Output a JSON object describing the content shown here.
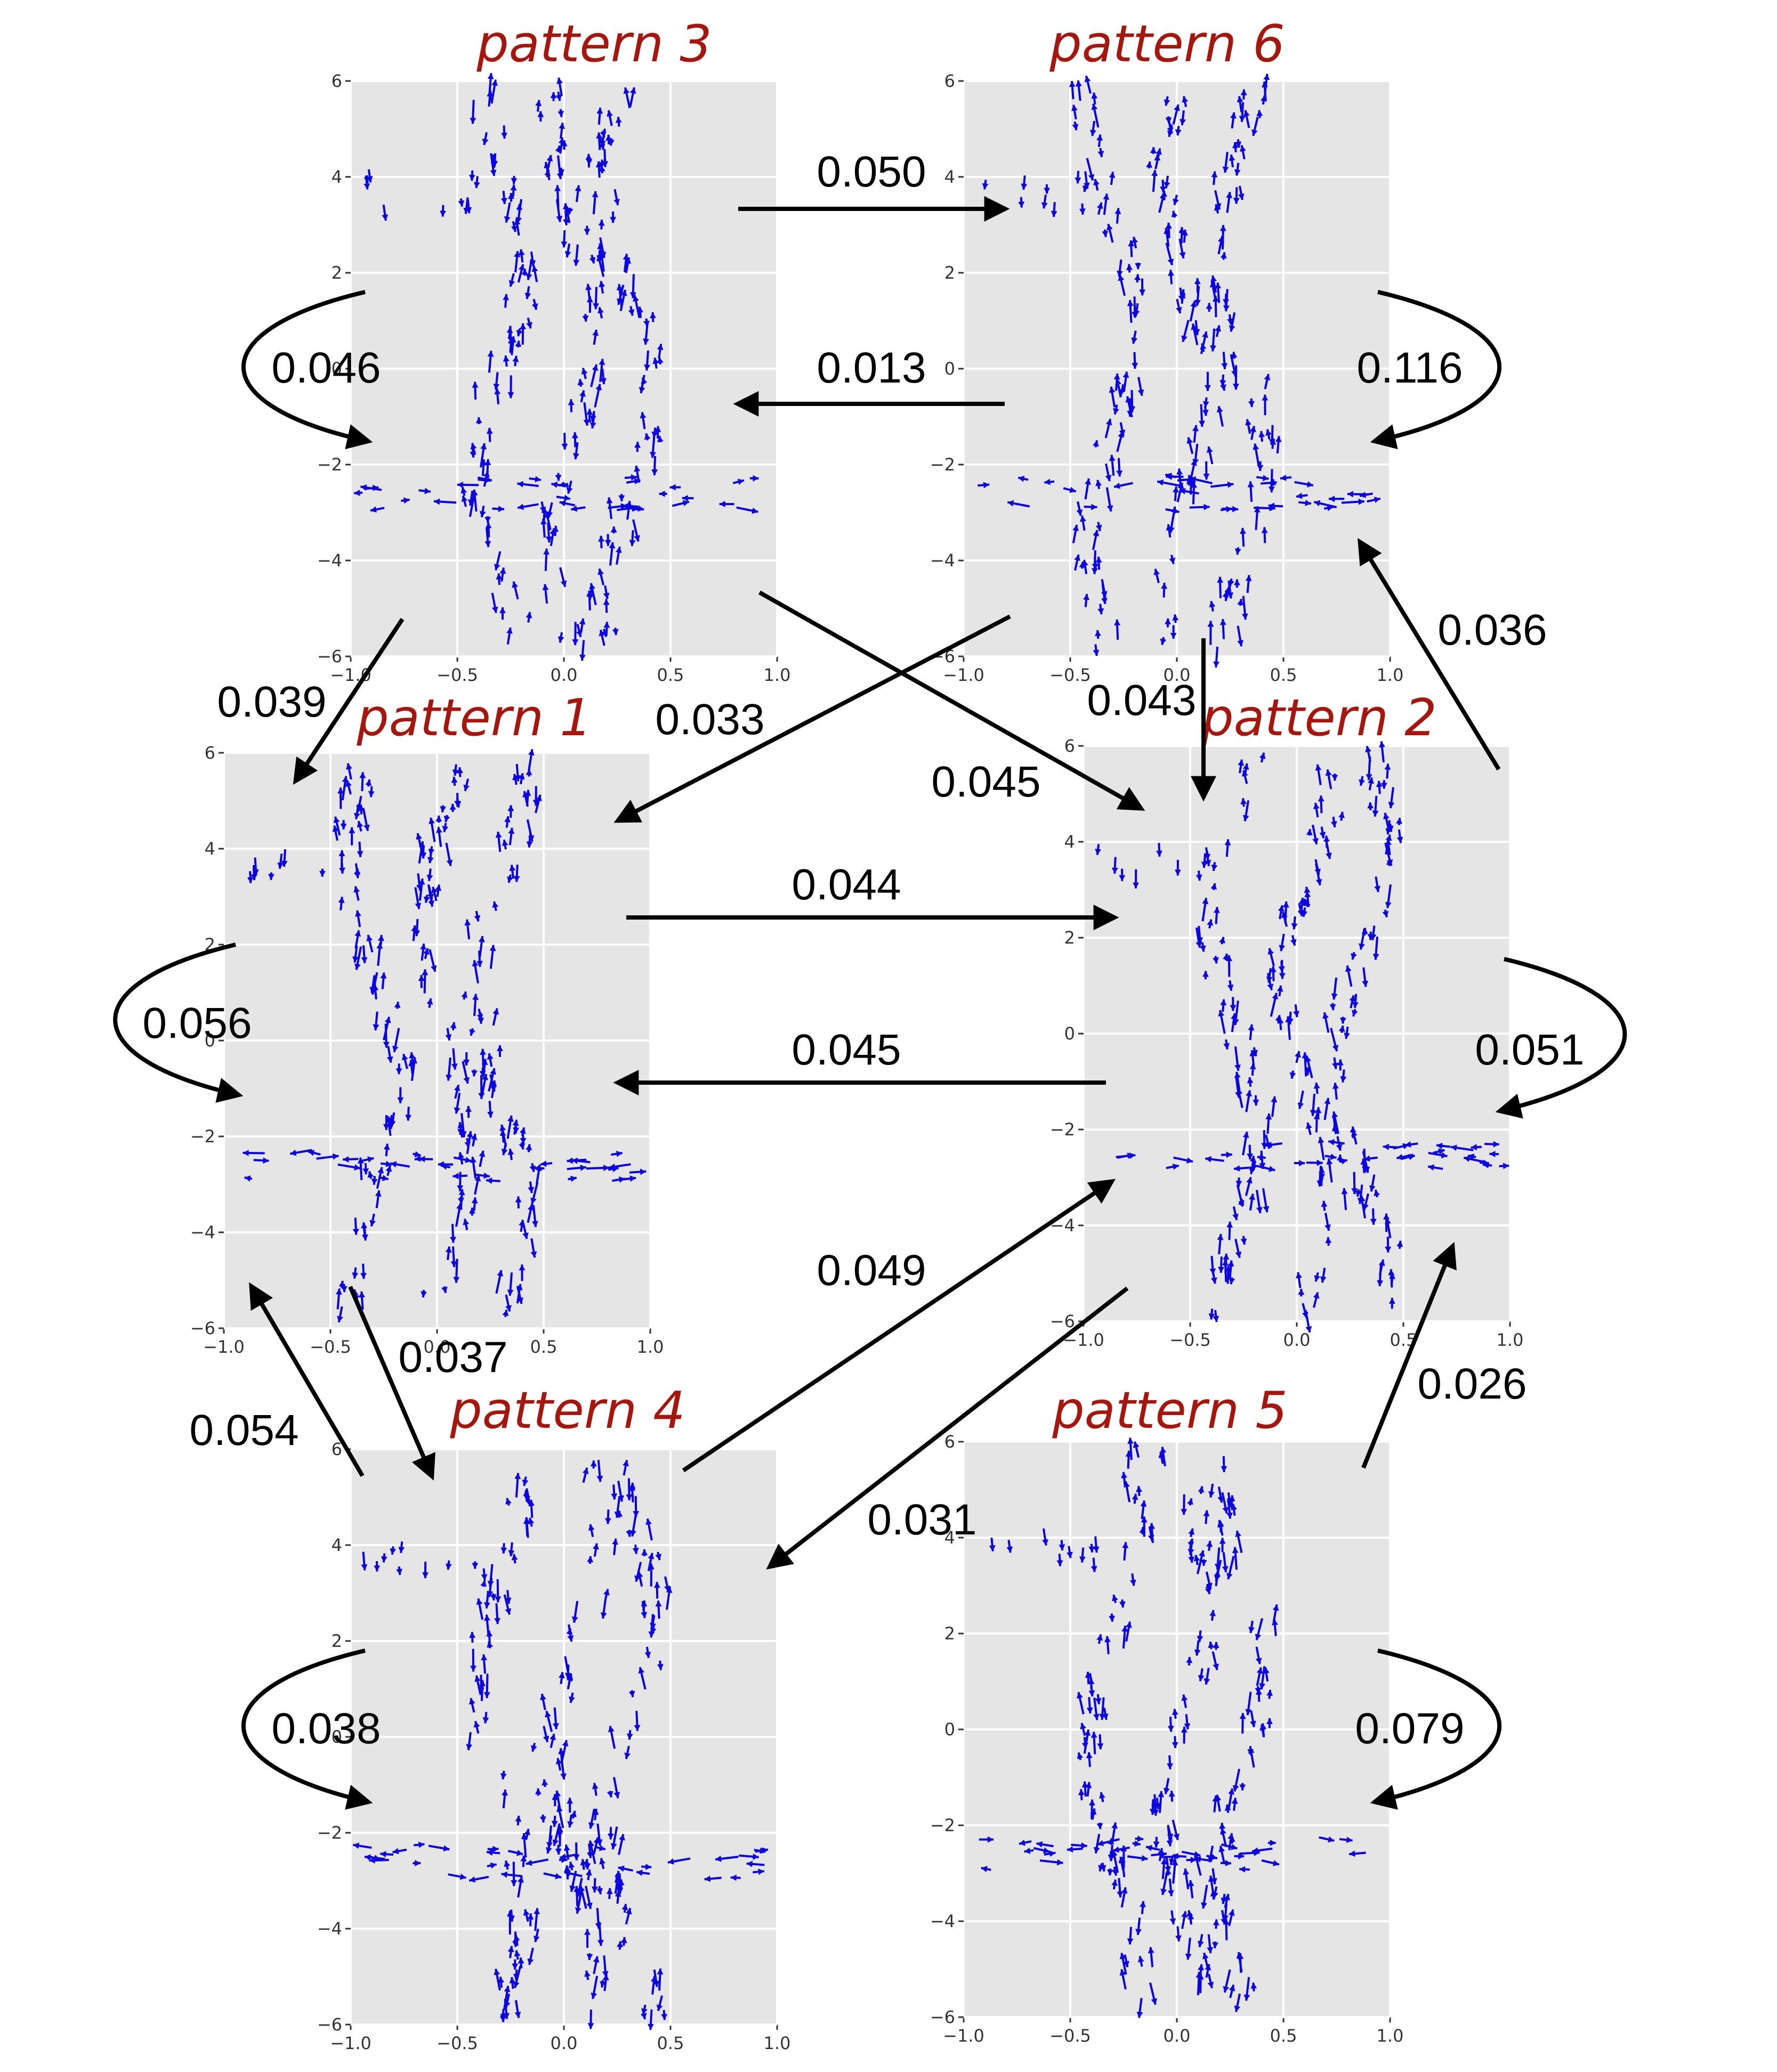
{
  "colors": {
    "panel_bg": "#e5e5e5",
    "title": "#a6160d",
    "vector": "#0a00e6",
    "arrow": "#000000"
  },
  "patterns": [
    {
      "id": "p3",
      "title": "pattern 3"
    },
    {
      "id": "p6",
      "title": "pattern 6"
    },
    {
      "id": "p1",
      "title": "pattern 1"
    },
    {
      "id": "p2",
      "title": "pattern 2"
    },
    {
      "id": "p4",
      "title": "pattern 4"
    },
    {
      "id": "p5",
      "title": "pattern 5"
    }
  ],
  "axes": {
    "x_ticks": [
      "−1.0",
      "−0.5",
      "0.0",
      "0.5",
      "1.0"
    ],
    "y_ticks": [
      "6",
      "4",
      "2",
      "0",
      "−2",
      "−4",
      "−6"
    ],
    "xlim": [
      -1.0,
      1.0
    ],
    "ylim": [
      -6,
      6
    ]
  },
  "transitions": [
    {
      "id": "p3_to_p6",
      "from": "pattern 3",
      "to": "pattern 6",
      "label": "0.050"
    },
    {
      "id": "p6_to_p3",
      "from": "pattern 6",
      "to": "pattern 3",
      "label": "0.013"
    },
    {
      "id": "p3_self",
      "from": "pattern 3",
      "to": "pattern 3",
      "label": "0.046"
    },
    {
      "id": "p6_self",
      "from": "pattern 6",
      "to": "pattern 6",
      "label": "0.116"
    },
    {
      "id": "p3_to_p1",
      "from": "pattern 3",
      "to": "pattern 1",
      "label": "0.039"
    },
    {
      "id": "p6_to_p1",
      "from": "pattern 6",
      "to": "pattern 1",
      "label": "0.033"
    },
    {
      "id": "p6_to_p2",
      "from": "pattern 6",
      "to": "pattern 2",
      "label": "0.043"
    },
    {
      "id": "p3_to_p2",
      "from": "pattern 3",
      "to": "pattern 2",
      "label": "0.045"
    },
    {
      "id": "p2_to_p6",
      "from": "pattern 2",
      "to": "pattern 6",
      "label": "0.036"
    },
    {
      "id": "p1_to_p2",
      "from": "pattern 1",
      "to": "pattern 2",
      "label": "0.044"
    },
    {
      "id": "p2_to_p1",
      "from": "pattern 2",
      "to": "pattern 1",
      "label": "0.045"
    },
    {
      "id": "p1_self",
      "from": "pattern 1",
      "to": "pattern 1",
      "label": "0.056"
    },
    {
      "id": "p2_self",
      "from": "pattern 2",
      "to": "pattern 2",
      "label": "0.051"
    },
    {
      "id": "p4_to_p2",
      "from": "pattern 4",
      "to": "pattern 2",
      "label": "0.049"
    },
    {
      "id": "p1_to_p4",
      "from": "pattern 1",
      "to": "pattern 4",
      "label": "0.037"
    },
    {
      "id": "p4_to_p1",
      "from": "pattern 4",
      "to": "pattern 1",
      "label": "0.054"
    },
    {
      "id": "p2_to_p4",
      "from": "pattern 2",
      "to": "pattern 4",
      "label": "0.031"
    },
    {
      "id": "p5_to_p2",
      "from": "pattern 5",
      "to": "pattern 2",
      "label": "0.026"
    },
    {
      "id": "p4_self",
      "from": "pattern 4",
      "to": "pattern 4",
      "label": "0.038"
    },
    {
      "id": "p5_self",
      "from": "pattern 5",
      "to": "pattern 5",
      "label": "0.079"
    }
  ]
}
